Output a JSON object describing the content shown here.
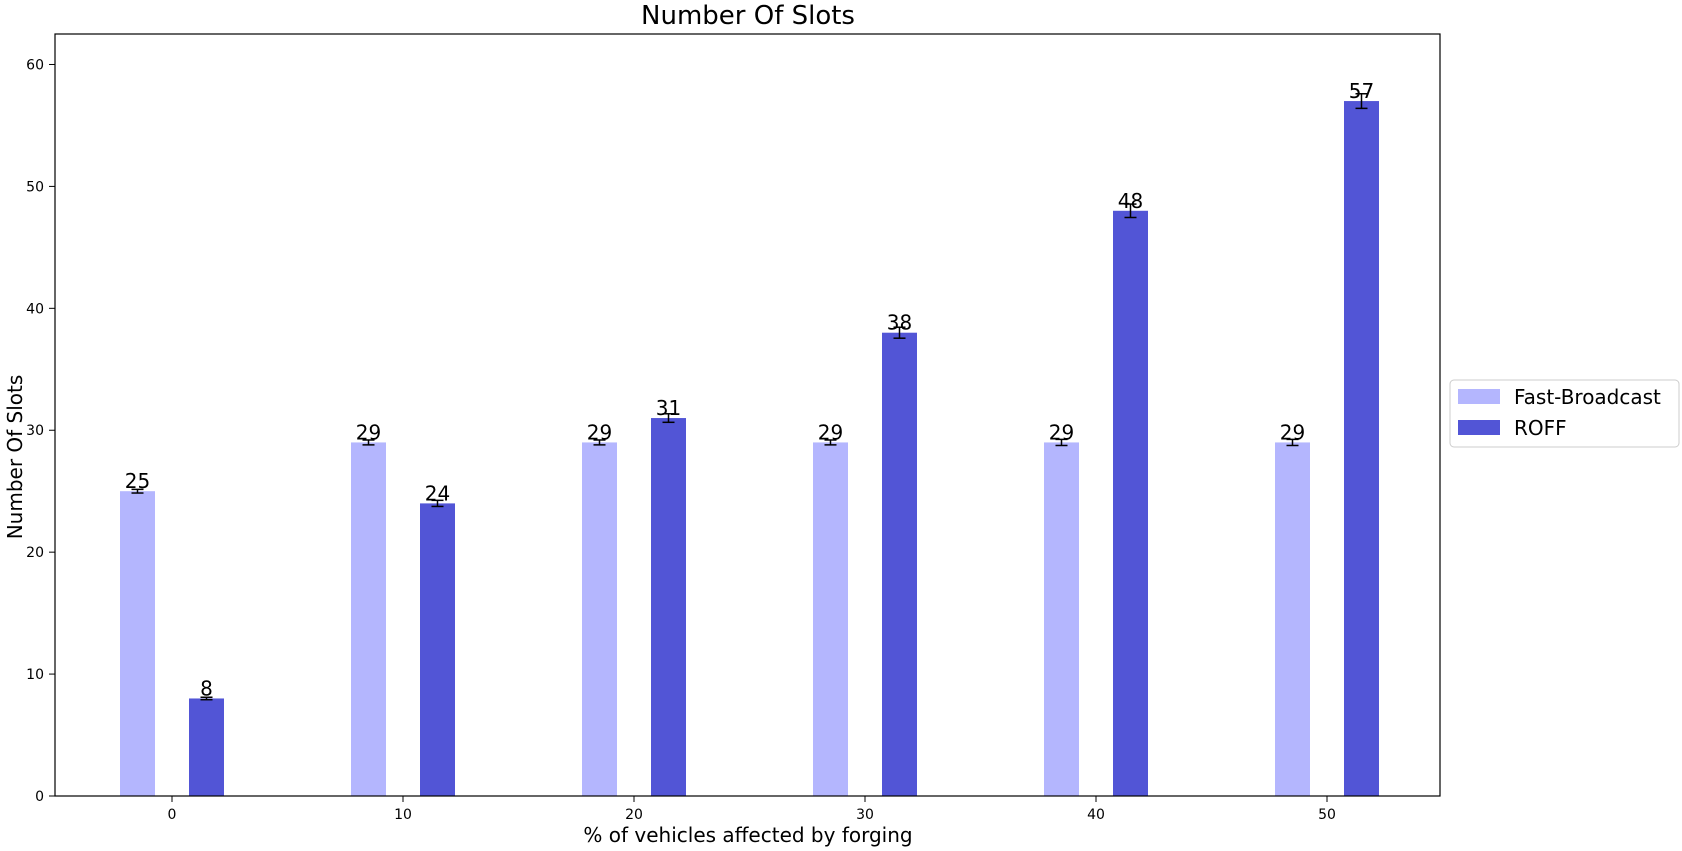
{
  "chart_data": {
    "type": "bar",
    "title": "Number Of Slots",
    "xlabel": "% of vehicles affected by forging",
    "ylabel": "Number Of Slots",
    "categories": [
      "0",
      "10",
      "20",
      "30",
      "40",
      "50"
    ],
    "ylim": [
      0,
      62.5
    ],
    "yticks": [
      0,
      10,
      20,
      30,
      40,
      50,
      60
    ],
    "grid": false,
    "legend_position": "right",
    "series": [
      {
        "name": "Fast-Broadcast",
        "color": "#b4b6fe",
        "values": [
          25,
          29,
          29,
          29,
          29,
          29
        ],
        "errors": [
          0.15,
          0.2,
          0.2,
          0.2,
          0.25,
          0.25
        ],
        "labels": [
          "25",
          "29",
          "29",
          "29",
          "29",
          "29"
        ]
      },
      {
        "name": "ROFF",
        "color": "#5255d6",
        "values": [
          8,
          24,
          31,
          38,
          48,
          57
        ],
        "errors": [
          0.1,
          0.25,
          0.35,
          0.45,
          0.55,
          0.6
        ],
        "labels": [
          "8",
          "24",
          "31",
          "38",
          "48",
          "57"
        ]
      }
    ]
  }
}
